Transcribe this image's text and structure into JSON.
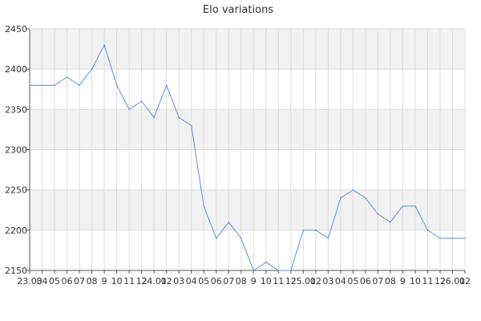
{
  "chart_data": {
    "type": "line",
    "title": "Elo variations",
    "xlabel": "",
    "ylabel": "",
    "x_tick_labels": [
      "23.03",
      "04",
      "05",
      "06",
      "07",
      "08",
      "9",
      "10",
      "11",
      "12",
      "24.01",
      "02",
      "03",
      "04",
      "05",
      "06",
      "07",
      "08",
      "9",
      "10",
      "11",
      "12",
      "25.01",
      "02",
      "03",
      "04",
      "05",
      "06",
      "07",
      "08",
      "9",
      "10",
      "11",
      "12",
      "26.01",
      "02"
    ],
    "y_ticks": [
      2150,
      2200,
      2250,
      2300,
      2350,
      2400,
      2450
    ],
    "ylim": [
      2150,
      2450
    ],
    "grid": true,
    "series": [
      {
        "color": "#5b8fe0",
        "values": [
          2380,
          2380,
          2380,
          2390,
          2380,
          2400,
          2430,
          2380,
          2350,
          2360,
          2340,
          2380,
          2340,
          2330,
          2230,
          2190,
          2210,
          2190,
          2150,
          2160,
          2150,
          2150,
          2200,
          2200,
          2190,
          2240,
          2250,
          2240,
          2220,
          2210,
          2230,
          2230,
          2200,
          2190,
          2190,
          2190
        ]
      }
    ],
    "colors": {
      "band": "#f2f2f2",
      "grid": "#dddddd",
      "axis": "#555555"
    }
  }
}
